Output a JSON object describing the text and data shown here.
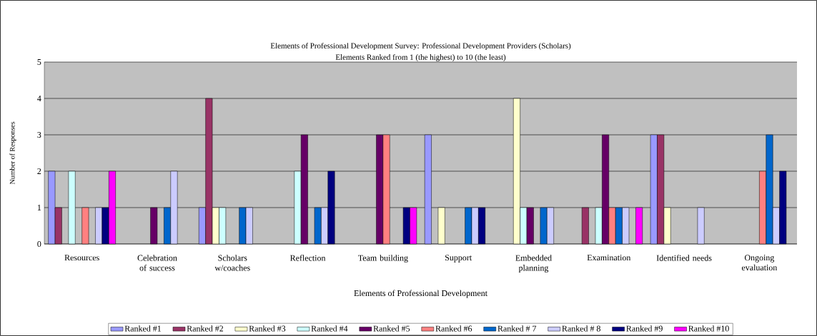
{
  "chart_data": {
    "type": "bar",
    "title": "Elements of Professional Development Survey: Professional Development Providers (Scholars)",
    "subtitle": "Elements Ranked from 1 (the highest) to 10 (the least)",
    "xlabel": "Elements of Professional Development",
    "ylabel": "Number of Responses",
    "categories": [
      "Resources",
      "Celebration of success",
      "Scholars w/coaches",
      "Reflection",
      "Team building",
      "Support",
      "Embedded planning",
      "Examination",
      "Identified needs",
      "Ongoing evaluation"
    ],
    "series": [
      {
        "name": "Ranked #1",
        "color": "#9999ff",
        "values": [
          2,
          0,
          1,
          0,
          0,
          3,
          0,
          0,
          3,
          0
        ]
      },
      {
        "name": "Ranked #2",
        "color": "#993366",
        "values": [
          1,
          0,
          4,
          0,
          0,
          0,
          0,
          1,
          3,
          0
        ]
      },
      {
        "name": "Ranked #3",
        "color": "#ffffcc",
        "values": [
          0,
          0,
          1,
          0,
          0,
          1,
          4,
          0,
          1,
          0
        ]
      },
      {
        "name": "Ranked #4",
        "color": "#ccffff",
        "values": [
          2,
          0,
          1,
          2,
          0,
          0,
          1,
          1,
          0,
          0
        ]
      },
      {
        "name": "Ranked #5",
        "color": "#660066",
        "values": [
          0,
          1,
          0,
          3,
          3,
          0,
          1,
          3,
          0,
          0
        ]
      },
      {
        "name": "Ranked #6",
        "color": "#ff8080",
        "values": [
          1,
          0,
          0,
          0,
          3,
          0,
          0,
          1,
          0,
          2
        ]
      },
      {
        "name": "Ranked # 7",
        "color": "#0066cc",
        "values": [
          0,
          1,
          1,
          1,
          0,
          1,
          1,
          1,
          0,
          3
        ]
      },
      {
        "name": "Ranked # 8",
        "color": "#ccccff",
        "values": [
          1,
          2,
          1,
          1,
          0,
          1,
          1,
          1,
          1,
          1
        ]
      },
      {
        "name": "Ranked #9",
        "color": "#000080",
        "values": [
          1,
          0,
          0,
          2,
          1,
          1,
          0,
          0,
          0,
          2
        ]
      },
      {
        "name": "Ranked #10",
        "color": "#ff00ff",
        "values": [
          2,
          0,
          0,
          0,
          1,
          0,
          0,
          1,
          0,
          0
        ]
      }
    ],
    "ylim": [
      0,
      5
    ],
    "yticks": [
      0,
      1,
      2,
      3,
      4,
      5
    ],
    "grid": "y",
    "legend": "bottom"
  }
}
